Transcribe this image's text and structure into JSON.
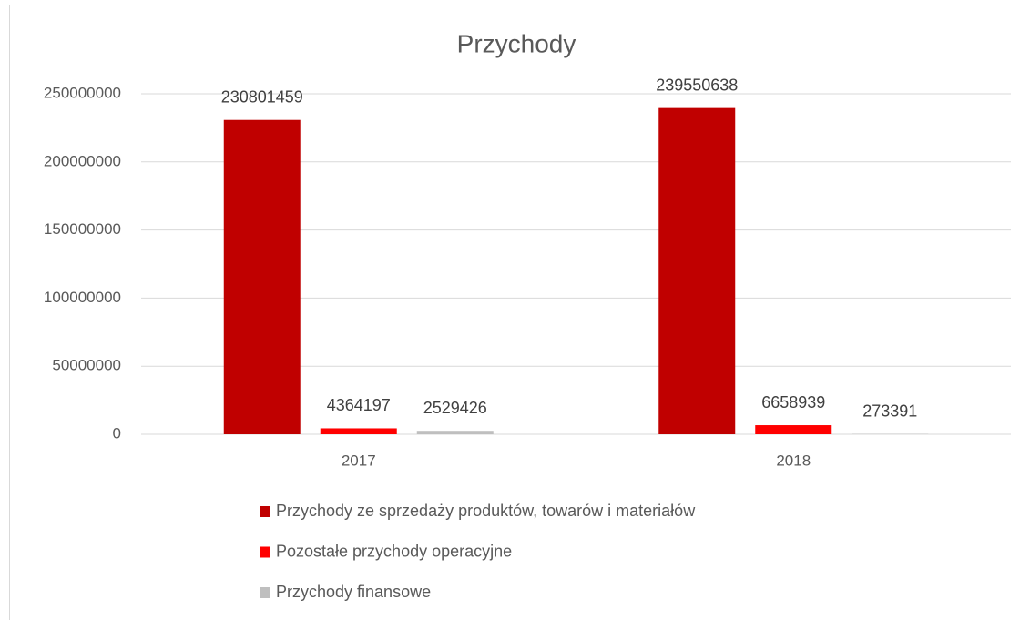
{
  "chart_data": {
    "type": "bar",
    "title": "Przychody",
    "categories": [
      "2017",
      "2018"
    ],
    "series": [
      {
        "name": "Przychody ze sprzedaży produktów, towarów i materiałów",
        "color": "#c00000",
        "values": [
          230801459,
          239550638
        ]
      },
      {
        "name": "Pozostałe przychody operacyjne",
        "color": "#ff0000",
        "values": [
          4364197,
          6658939
        ]
      },
      {
        "name": "Przychody finansowe",
        "color": "#bfbfbf",
        "values": [
          2529426,
          273391
        ]
      }
    ],
    "ylim": [
      0,
      250000000
    ],
    "yticks": [
      0,
      50000000,
      100000000,
      150000000,
      200000000,
      250000000
    ],
    "grid": true,
    "legend": "bottom"
  }
}
